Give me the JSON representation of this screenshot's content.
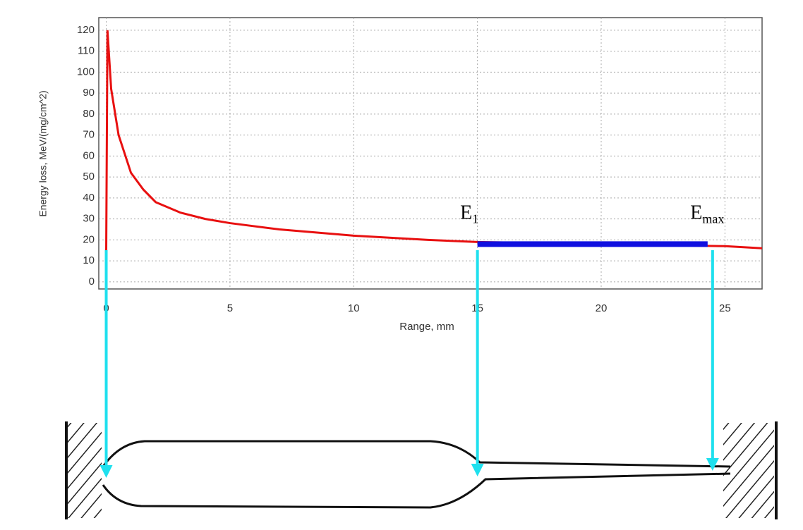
{
  "chart_data": {
    "type": "line",
    "x_label": "Range, mm",
    "y_label": "Energy loss, MeV/(mg/cm^2)",
    "xlim": [
      -0.3,
      26.5
    ],
    "ylim": [
      -3.4,
      126
    ],
    "xticks": [
      0,
      5,
      10,
      15,
      20,
      25
    ],
    "yticks": [
      0,
      10,
      20,
      30,
      40,
      50,
      60,
      70,
      80,
      90,
      100,
      110,
      120
    ],
    "grid": true,
    "series": [
      {
        "color": "#e81010",
        "x": [
          0,
          0.05,
          0.2,
          0.5,
          1,
          1.5,
          2,
          3,
          4,
          5,
          7,
          10,
          13,
          15,
          20,
          25,
          26.5
        ],
        "values": [
          15,
          120,
          92,
          70,
          52,
          44,
          38,
          33,
          30,
          28,
          25,
          22,
          20,
          19,
          18,
          17,
          16
        ]
      }
    ],
    "highlight": {
      "x": [
        15,
        24.3
      ],
      "y": 18,
      "color": "#1010e0"
    },
    "annotations": [
      {
        "text": "E",
        "sub": "1",
        "x": 14.3,
        "y": 32
      },
      {
        "text": "E",
        "sub": "max",
        "x": 23.6,
        "y": 32
      }
    ],
    "arrows_x": [
      0,
      15,
      24.5
    ],
    "arrow_color": "#1ee0ee"
  }
}
